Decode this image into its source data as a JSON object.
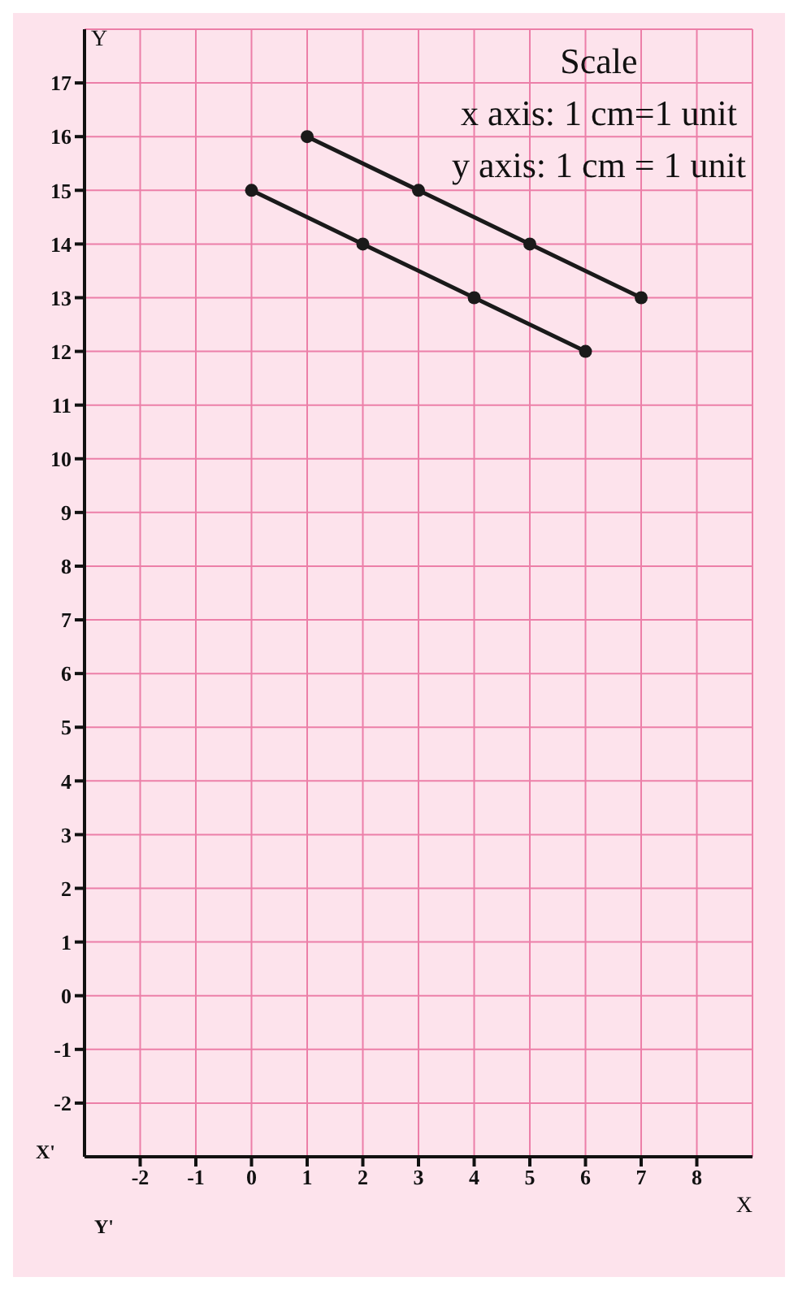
{
  "chart_data": {
    "type": "line",
    "xlabel": "X",
    "ylabel": "Y",
    "annotations": [
      "Scale",
      "x axis: 1 cm=1 unit",
      "y axis: 1 cm = 1 unit",
      "X'",
      "Y'"
    ],
    "series": [
      {
        "color": "#1a1a1a",
        "x": [
          1,
          3,
          5,
          7
        ],
        "values": [
          16,
          15,
          14,
          13
        ]
      },
      {
        "color": "#1a1a1a",
        "x": [
          0,
          2,
          4,
          6
        ],
        "values": [
          15,
          14,
          13,
          12
        ]
      }
    ],
    "xlim": [
      -3,
      9
    ],
    "xticks": [
      -2,
      -1,
      0,
      1,
      2,
      3,
      4,
      5,
      6,
      7,
      8
    ],
    "ylim": [
      -3,
      18
    ],
    "yticks": [
      -2,
      -1,
      0,
      1,
      2,
      3,
      4,
      5,
      6,
      7,
      8,
      9,
      10,
      11,
      12,
      13,
      14,
      15,
      16,
      17
    ],
    "grid": true,
    "marker": "circle",
    "line_style": "solid"
  }
}
